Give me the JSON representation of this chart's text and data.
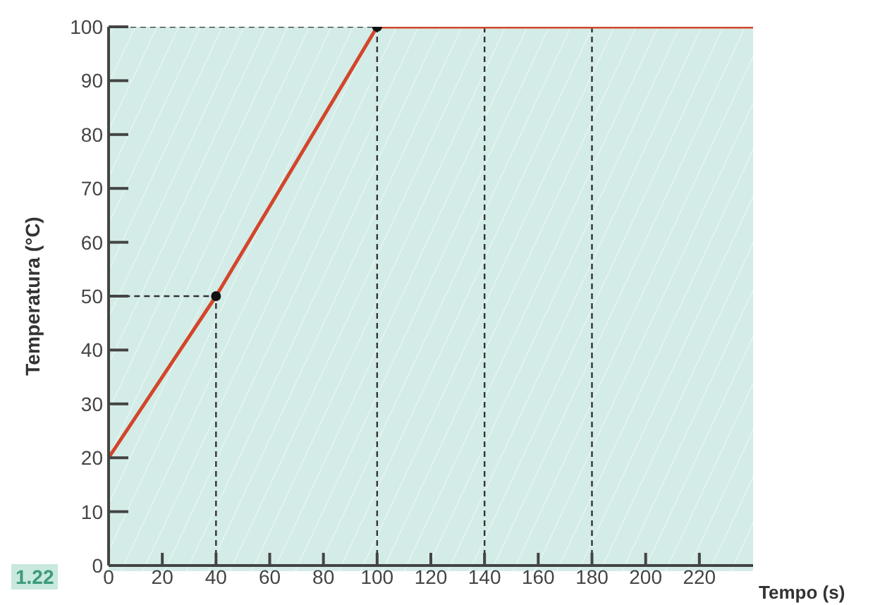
{
  "chart_data": {
    "type": "line",
    "xlabel": "Tempo (s)",
    "ylabel": "Temperatura (°C)",
    "annotations": [
      "1.22"
    ],
    "series": [
      {
        "type": "line",
        "color": "#d2462a",
        "x": [
          0,
          40,
          100,
          240
        ],
        "values": [
          20,
          50,
          100,
          100
        ]
      },
      {
        "type": "line",
        "color": "#333333",
        "line_style": "dashed",
        "x": [
          40,
          40,
          0
        ],
        "values": [
          0,
          50,
          50
        ]
      },
      {
        "type": "line",
        "color": "#333333",
        "line_style": "dashed",
        "x": [
          100,
          100,
          0
        ],
        "values": [
          0,
          100,
          100
        ]
      },
      {
        "type": "scatter",
        "color": "#111111",
        "marker": "circle",
        "x": [
          40,
          100
        ],
        "values": [
          50,
          100
        ]
      }
    ],
    "xlim": [
      0,
      240
    ],
    "xticks": [
      0,
      20,
      40,
      60,
      80,
      100,
      120,
      140,
      160,
      180,
      200,
      220
    ],
    "ylim": [
      0,
      100
    ],
    "yticks": [
      0,
      10,
      20,
      30,
      40,
      50,
      60,
      70,
      80,
      90,
      100
    ],
    "ref_lines": [
      {
        "axis": "x",
        "value": 140,
        "line_style": "dashed"
      },
      {
        "axis": "x",
        "value": 180,
        "line_style": "dashed"
      }
    ],
    "legend": false,
    "marker": "none"
  }
}
